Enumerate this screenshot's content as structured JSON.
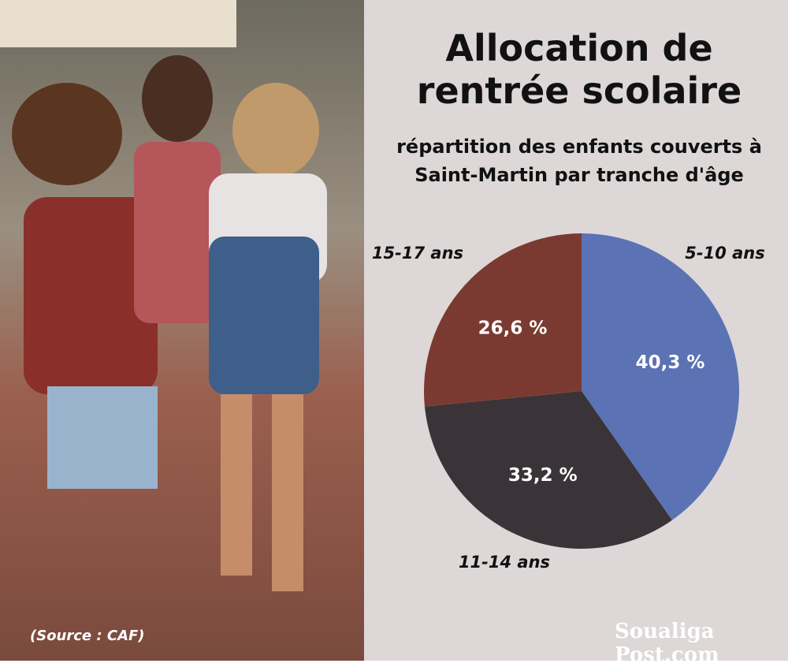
{
  "chart_data": {
    "type": "pie",
    "title": "Allocation de rentrée scolaire",
    "subtitle": "répartition des enfants couverts à Saint-Martin par tranche d'âge",
    "categories": [
      "5-10 ans",
      "11-14 ans",
      "15-17 ans"
    ],
    "values": [
      40.3,
      33.2,
      26.6
    ],
    "value_labels": [
      "40,3 %",
      "33,2 %",
      "26,6 %"
    ],
    "colors": [
      "#5b73b4",
      "#3a3439",
      "#7b3a31"
    ],
    "source": "(Source :  CAF)",
    "logo": "Soualiga Post.com"
  }
}
